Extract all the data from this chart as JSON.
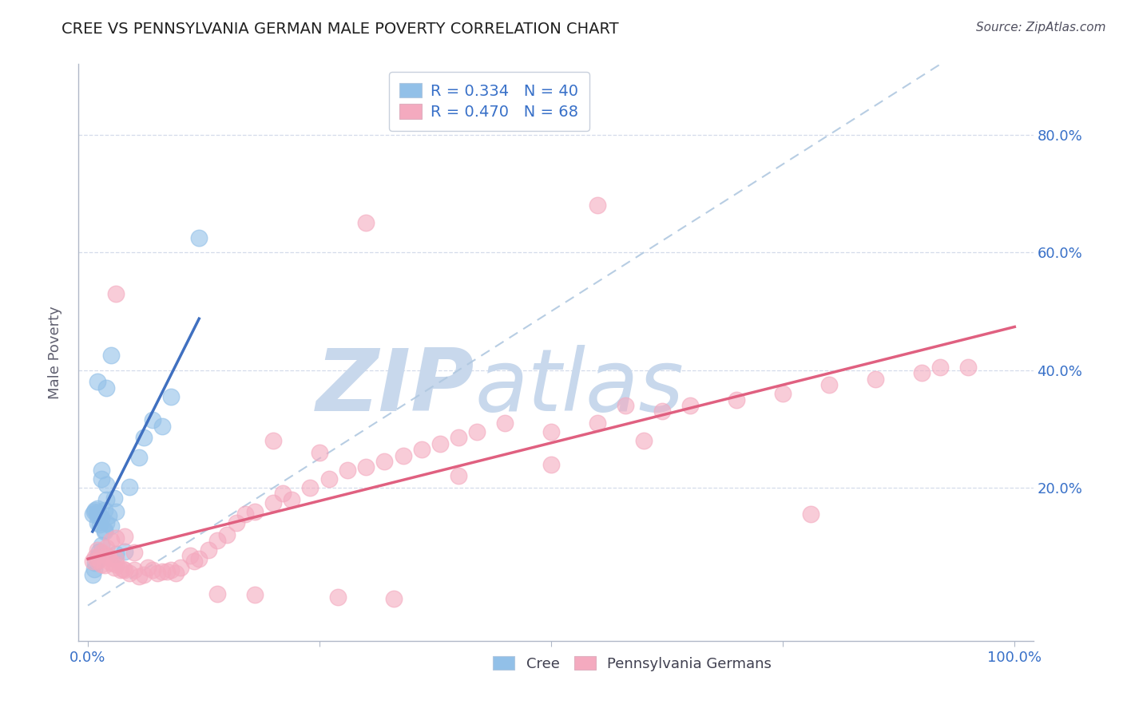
{
  "title": "CREE VS PENNSYLVANIA GERMAN MALE POVERTY CORRELATION CHART",
  "source": "Source: ZipAtlas.com",
  "ylabel": "Male Poverty",
  "xlim": [
    -0.01,
    1.02
  ],
  "ylim": [
    -0.06,
    0.92
  ],
  "cree_R": 0.334,
  "cree_N": 40,
  "pg_R": 0.47,
  "pg_N": 68,
  "cree_color": "#92C0E8",
  "pg_color": "#F4AABF",
  "cree_line_color": "#4070C0",
  "pg_line_color": "#E06080",
  "ref_line_color": "#B0C8E0",
  "watermark_zip_color": "#C8D8EC",
  "watermark_atlas_color": "#C8D8EC",
  "grid_color": "#D0D8E8",
  "title_color": "#202020",
  "axis_label_color": "#3870C8",
  "ylabel_color": "#606070",
  "source_color": "#505060",
  "cree_x": [
    0.005,
    0.007,
    0.008,
    0.01,
    0.01,
    0.01,
    0.01,
    0.012,
    0.013,
    0.015,
    0.015,
    0.015,
    0.018,
    0.018,
    0.02,
    0.02,
    0.02,
    0.022,
    0.025,
    0.025,
    0.028,
    0.03,
    0.03,
    0.04,
    0.045,
    0.055,
    0.06,
    0.07,
    0.08,
    0.09,
    0.005,
    0.007,
    0.008,
    0.01,
    0.01,
    0.012,
    0.015,
    0.018,
    0.02,
    0.12
  ],
  "cree_y": [
    0.155,
    0.16,
    0.162,
    0.14,
    0.152,
    0.158,
    0.165,
    0.155,
    0.138,
    0.148,
    0.215,
    0.23,
    0.128,
    0.162,
    0.14,
    0.18,
    0.205,
    0.152,
    0.135,
    0.425,
    0.182,
    0.16,
    0.088,
    0.092,
    0.202,
    0.252,
    0.285,
    0.315,
    0.305,
    0.355,
    0.052,
    0.062,
    0.072,
    0.082,
    0.38,
    0.092,
    0.102,
    0.125,
    0.37,
    0.625
  ],
  "pg_x": [
    0.005,
    0.008,
    0.01,
    0.01,
    0.012,
    0.015,
    0.015,
    0.018,
    0.02,
    0.02,
    0.022,
    0.025,
    0.025,
    0.028,
    0.03,
    0.03,
    0.03,
    0.035,
    0.038,
    0.04,
    0.04,
    0.045,
    0.05,
    0.05,
    0.055,
    0.06,
    0.065,
    0.07,
    0.075,
    0.08,
    0.085,
    0.09,
    0.095,
    0.1,
    0.11,
    0.115,
    0.12,
    0.13,
    0.14,
    0.15,
    0.16,
    0.17,
    0.18,
    0.2,
    0.21,
    0.22,
    0.24,
    0.26,
    0.28,
    0.3,
    0.32,
    0.34,
    0.36,
    0.38,
    0.4,
    0.42,
    0.45,
    0.5,
    0.55,
    0.58,
    0.62,
    0.65,
    0.7,
    0.75,
    0.8,
    0.85,
    0.9,
    0.95
  ],
  "pg_y": [
    0.075,
    0.082,
    0.075,
    0.095,
    0.078,
    0.07,
    0.09,
    0.068,
    0.085,
    0.098,
    0.082,
    0.072,
    0.11,
    0.065,
    0.07,
    0.08,
    0.115,
    0.06,
    0.062,
    0.06,
    0.118,
    0.055,
    0.06,
    0.09,
    0.05,
    0.052,
    0.065,
    0.06,
    0.055,
    0.058,
    0.058,
    0.06,
    0.055,
    0.065,
    0.085,
    0.075,
    0.08,
    0.095,
    0.11,
    0.12,
    0.14,
    0.155,
    0.16,
    0.175,
    0.19,
    0.18,
    0.2,
    0.215,
    0.23,
    0.235,
    0.245,
    0.255,
    0.265,
    0.275,
    0.285,
    0.295,
    0.31,
    0.295,
    0.31,
    0.34,
    0.33,
    0.34,
    0.35,
    0.36,
    0.375,
    0.385,
    0.395,
    0.405
  ],
  "pg_extra_x": [
    0.3,
    0.55,
    0.03,
    0.2,
    0.25,
    0.4,
    0.5,
    0.6,
    0.78,
    0.92,
    0.14,
    0.18,
    0.27,
    0.33
  ],
  "pg_extra_y": [
    0.65,
    0.68,
    0.53,
    0.28,
    0.26,
    0.22,
    0.24,
    0.28,
    0.155,
    0.405,
    0.02,
    0.018,
    0.015,
    0.012
  ]
}
